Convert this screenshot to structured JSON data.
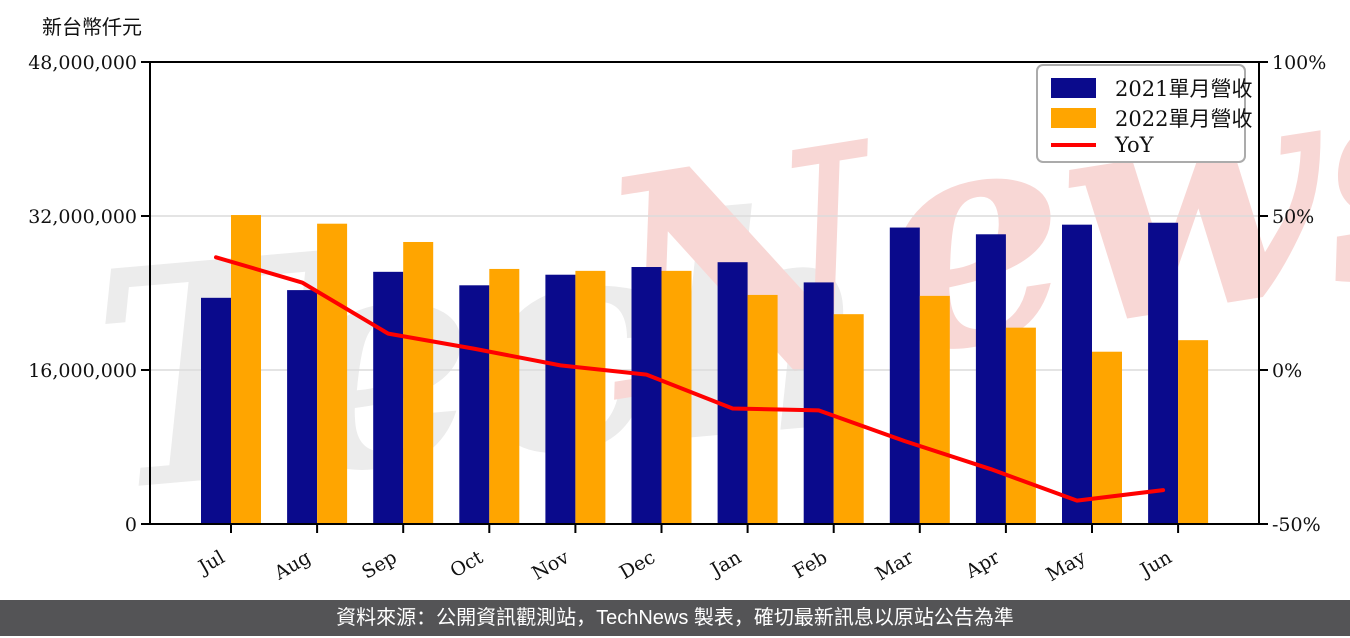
{
  "watermark": {
    "part1": "Tech",
    "part2": "News"
  },
  "footer": {
    "text": "資料來源：公開資訊觀測站，TechNews 製表，確切最新訊息以原站公告為準",
    "bg": "#545456",
    "text_color": "#ffffff"
  },
  "chart_data": {
    "type": "bar",
    "subtype": "grouped bars with overlaid YoY line (dual axis)",
    "categories": [
      "Jul",
      "Aug",
      "Sep",
      "Oct",
      "Nov",
      "Dec",
      "Jan",
      "Feb",
      "Mar",
      "Apr",
      "May",
      "Jun"
    ],
    "series": [
      {
        "name": "2021單月營收",
        "type": "bar",
        "axis": "left",
        "color": "#0A0A8C",
        "values": [
          23500000,
          24300000,
          26200000,
          24800000,
          25900000,
          26700000,
          27200000,
          25100000,
          30800000,
          30100000,
          31100000,
          31300000
        ]
      },
      {
        "name": "2022單月營收",
        "type": "bar",
        "axis": "left",
        "color": "#FFA500",
        "values": [
          32100000,
          31200000,
          29300000,
          26500000,
          26300000,
          26300000,
          23800000,
          21800000,
          23700000,
          20400000,
          17900000,
          19100000
        ]
      },
      {
        "name": "YoY",
        "type": "line",
        "axis": "right",
        "color": "#FF0000",
        "values": [
          36.6,
          28.4,
          11.8,
          6.9,
          1.5,
          -1.5,
          -12.5,
          -13.1,
          -23.1,
          -32.2,
          -42.4,
          -39.0
        ]
      }
    ],
    "left_axis": {
      "title": "新台幣仟元",
      "min": 0,
      "max": 48000000,
      "tick_values": [
        0,
        16000000,
        32000000,
        48000000
      ],
      "tick_labels": [
        "0",
        "16,000,000",
        "32,000,000",
        "48,000,000"
      ]
    },
    "right_axis": {
      "min": -50,
      "max": 100,
      "tick_values": [
        -50,
        0,
        50,
        100
      ],
      "tick_labels": [
        "-50%",
        "0%",
        "50%",
        "100%"
      ]
    },
    "grid": "horizontal gridlines at interior left-axis ticks",
    "legend_position": "top-right inside plot",
    "colors": {
      "grid": "#DCDCDC",
      "axis": "#000000",
      "text": "#111111",
      "background": "#FFFFFF"
    }
  }
}
